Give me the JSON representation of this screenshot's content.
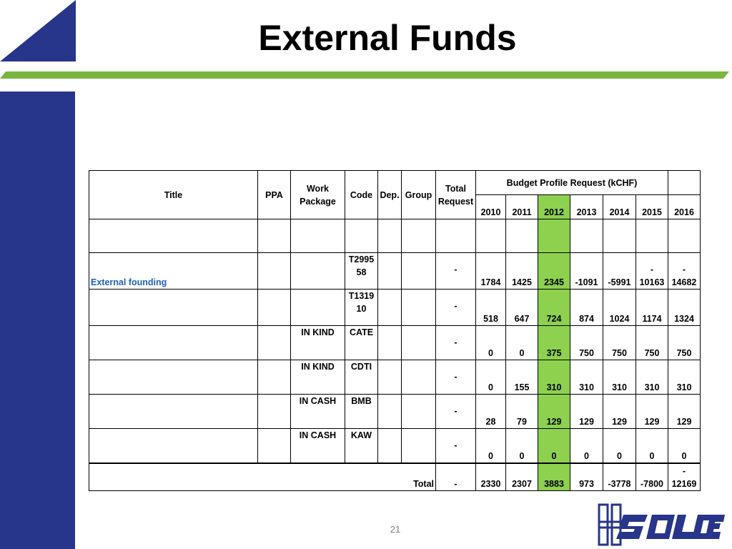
{
  "slide": {
    "title": "External Funds",
    "page_number": "21",
    "logo_text": "HESOLDE",
    "colors": {
      "sidebar": "#27358a",
      "accent_line": "#7ab540",
      "highlight_2012": "#8dd14f",
      "link": "#1f5fbd"
    }
  },
  "table": {
    "headers": {
      "title": "Title",
      "ppa": "PPA",
      "work_package": "Work Package",
      "code": "Code",
      "dep": "Dep.",
      "group": "Group",
      "total_request": "Total Request",
      "budget_profile": "Budget Profile Request (kCHF)",
      "years": [
        "2010",
        "2011",
        "2012",
        "2013",
        "2014",
        "2015",
        "2016"
      ]
    },
    "rows": [
      {
        "title": "",
        "ppa": "",
        "wp": "",
        "code": "",
        "dep": "",
        "group": "",
        "total": "",
        "values": [
          "",
          "",
          "",
          "",
          "",
          "",
          ""
        ]
      },
      {
        "title": "External founding",
        "ppa": "",
        "wp": "",
        "code": [
          "T2995",
          "58"
        ],
        "dep": "",
        "group": "",
        "total": "-",
        "values": [
          "1784",
          "1425",
          "2345",
          "-1091",
          "-5991",
          [
            "-",
            "10163"
          ],
          [
            "-",
            "14682"
          ]
        ]
      },
      {
        "title": "",
        "ppa": "",
        "wp": "",
        "code": [
          "T1319",
          "10"
        ],
        "dep": "",
        "group": "",
        "total": "-",
        "values": [
          "518",
          "647",
          "724",
          "874",
          "1024",
          "1174",
          "1324"
        ]
      },
      {
        "title": "",
        "ppa": "",
        "wp": "IN KIND",
        "code": "CATE",
        "dep": "",
        "group": "",
        "total": "-",
        "values": [
          "0",
          "0",
          "375",
          "750",
          "750",
          "750",
          "750"
        ]
      },
      {
        "title": "",
        "ppa": "",
        "wp": "IN KIND",
        "code": "CDTI",
        "dep": "",
        "group": "",
        "total": "-",
        "values": [
          "0",
          "155",
          "310",
          "310",
          "310",
          "310",
          "310"
        ]
      },
      {
        "title": "",
        "ppa": "",
        "wp": "IN CASH",
        "code": "BMB",
        "dep": "",
        "group": "",
        "total": "-",
        "values": [
          "28",
          "79",
          "129",
          "129",
          "129",
          "129",
          "129"
        ]
      },
      {
        "title": "",
        "ppa": "",
        "wp": "IN CASH",
        "code": "KAW",
        "dep": "",
        "group": "",
        "total": "-",
        "values": [
          "0",
          "0",
          "0",
          "0",
          "0",
          "0",
          "0"
        ]
      }
    ],
    "total_row": {
      "label": "Total",
      "total": "-",
      "values": [
        "2330",
        "2307",
        "3883",
        "973",
        "-3778",
        "-7800",
        [
          "-",
          "12169"
        ]
      ]
    }
  }
}
